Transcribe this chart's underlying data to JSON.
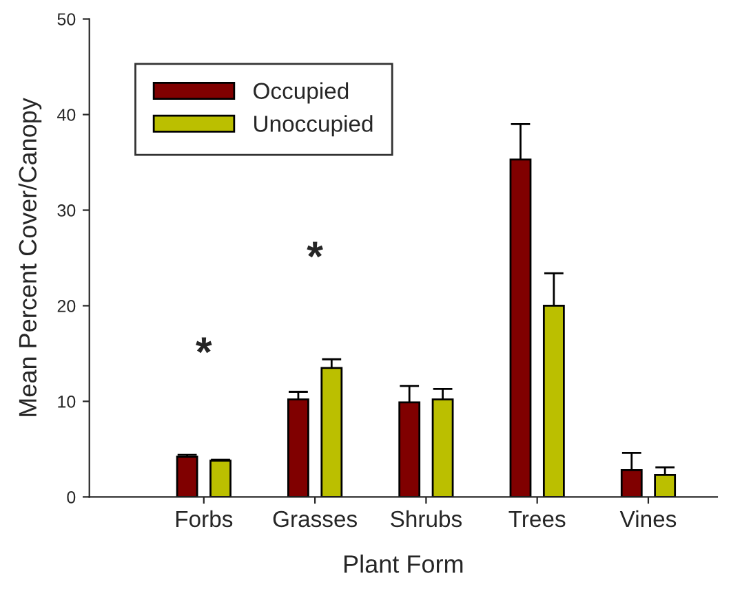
{
  "chart_data": {
    "type": "bar",
    "xlabel": "Plant Form",
    "ylabel": "Mean Percent Cover/Canopy",
    "categories": [
      "Forbs",
      "Grasses",
      "Shrubs",
      "Trees",
      "Vines"
    ],
    "series": [
      {
        "name": "Occupied",
        "color": "#800000",
        "values": [
          4.2,
          10.2,
          9.9,
          35.3,
          2.8
        ],
        "errors": [
          0.2,
          0.8,
          1.7,
          3.7,
          1.8
        ]
      },
      {
        "name": "Unoccupied",
        "color": "#bbbf00",
        "values": [
          3.8,
          13.5,
          10.2,
          20.0,
          2.3
        ],
        "errors": [
          0.1,
          0.9,
          1.1,
          3.4,
          0.8
        ]
      }
    ],
    "annotations": [
      "*",
      "*"
    ],
    "ylim": [
      0,
      50
    ],
    "yticks": [
      0,
      10,
      20,
      30,
      40,
      50
    ],
    "legend": "top left",
    "grid": false
  }
}
